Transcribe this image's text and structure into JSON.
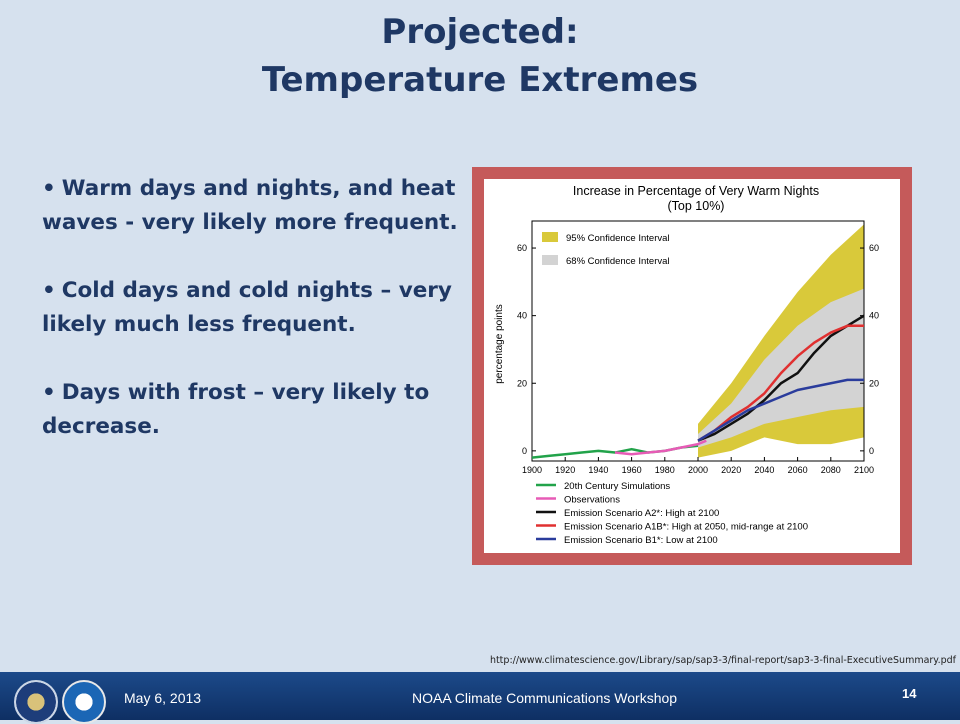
{
  "slide": {
    "title_line1": "Projected:",
    "title_line2": "Temperature Extremes",
    "bullets": [
      {
        "text": "Warm days and nights, and heat waves - very likely more frequent."
      },
      {
        "text": "Cold days and cold nights – very likely much less frequent."
      },
      {
        "text": "Days with frost – very likely to decrease."
      }
    ],
    "source_url": "http://www.climatescience.gov/Library/sap/sap3-3/final-report/sap3-3-final-ExecutiveSummary.pdf"
  },
  "footer": {
    "date": "May 6, 2013",
    "workshop": "NOAA Climate Communications Workshop",
    "page_number": "14"
  },
  "chart_data": {
    "type": "line",
    "title": "Increase in Percentage of Very Warm Nights",
    "subtitle": "(Top 10%)",
    "ylabel": "percentage points",
    "xlabel": "",
    "xlim": [
      1900,
      2100
    ],
    "ylim": [
      -3,
      68
    ],
    "x_ticks": [
      1900,
      1920,
      1940,
      1960,
      1980,
      2000,
      2020,
      2040,
      2060,
      2080,
      2100
    ],
    "y_ticks": [
      0,
      20,
      40,
      60
    ],
    "bands": [
      {
        "name": "95% Confidence Interval",
        "color": "#d9c93a",
        "x": [
          2000,
          2020,
          2040,
          2060,
          2080,
          2100
        ],
        "upper": [
          8,
          20,
          34,
          47,
          58,
          67
        ],
        "lower": [
          -2,
          0,
          4,
          2,
          2,
          4
        ]
      },
      {
        "name": "68% Confidence Interval",
        "color": "#d3d3d3",
        "x": [
          2000,
          2020,
          2040,
          2060,
          2080,
          2100
        ],
        "upper": [
          5,
          14,
          27,
          37,
          44,
          48
        ],
        "lower": [
          1,
          4,
          8,
          10,
          12,
          13
        ]
      }
    ],
    "series": [
      {
        "name": "20th Century Simulations",
        "color": "#22a34a",
        "x": [
          1900,
          1910,
          1920,
          1930,
          1940,
          1950,
          1960,
          1970,
          1980,
          1990,
          2000
        ],
        "y": [
          -2,
          -1.5,
          -1,
          -0.5,
          0,
          -0.5,
          0.5,
          -0.5,
          0,
          1,
          1.5
        ]
      },
      {
        "name": "Observations",
        "color": "#e75bb6",
        "x": [
          1950,
          1960,
          1970,
          1980,
          1990,
          2000,
          2005
        ],
        "y": [
          -0.5,
          -1,
          -0.5,
          0,
          1,
          2,
          3
        ]
      },
      {
        "name": "Emission Scenario A2*: High at 2100",
        "color": "#111111",
        "x": [
          2000,
          2010,
          2020,
          2030,
          2040,
          2050,
          2060,
          2070,
          2080,
          2090,
          2100
        ],
        "y": [
          3,
          5,
          8,
          11,
          15,
          20,
          23,
          29,
          34,
          37,
          40
        ]
      },
      {
        "name": "Emission Scenario A1B*: High at 2050, mid-range at 2100",
        "color": "#e03030",
        "x": [
          2000,
          2010,
          2020,
          2030,
          2040,
          2050,
          2060,
          2070,
          2080,
          2090,
          2100
        ],
        "y": [
          3,
          6,
          10,
          13,
          17,
          23,
          28,
          32,
          35,
          37,
          37
        ]
      },
      {
        "name": "Emission Scenario B1*: Low at 2100",
        "color": "#2a3c9c",
        "x": [
          2000,
          2010,
          2020,
          2030,
          2040,
          2050,
          2060,
          2070,
          2080,
          2090,
          2100
        ],
        "y": [
          3,
          6,
          9,
          12,
          14,
          16,
          18,
          19,
          20,
          21,
          21
        ]
      }
    ]
  }
}
